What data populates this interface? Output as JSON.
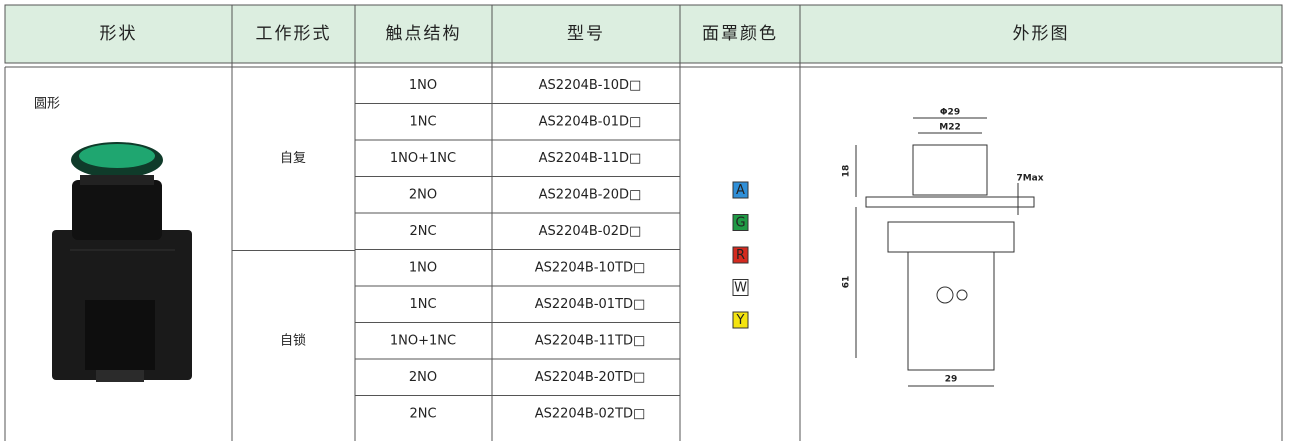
{
  "table": {
    "header": [
      "形状",
      "工作形式",
      "触点结构",
      "型号",
      "面罩颜色",
      "外形图"
    ],
    "shape": "圆形",
    "groups": [
      {
        "mode": "自复",
        "rows": [
          [
            "1NO",
            "AS2204B-10D□"
          ],
          [
            "1NC",
            "AS2204B-01D□"
          ],
          [
            "1NO+1NC",
            "AS2204B-11D□"
          ],
          [
            "2NO",
            "AS2204B-20D□"
          ],
          [
            "2NC",
            "AS2204B-02D□"
          ]
        ]
      },
      {
        "mode": "自锁",
        "rows": [
          [
            "1NO",
            "AS2204B-10TD□"
          ],
          [
            "1NC",
            "AS2204B-01TD□"
          ],
          [
            "1NO+1NC",
            "AS2204B-11TD□"
          ],
          [
            "2NO",
            "AS2204B-20TD□"
          ],
          [
            "2NC",
            "AS2204B-02TD□"
          ]
        ]
      }
    ],
    "colors": [
      "A",
      "G",
      "R",
      "W",
      "Y"
    ]
  },
  "drawing": {
    "labels": [
      "Φ29",
      "M22",
      "18",
      "7Max",
      "61",
      "29"
    ]
  }
}
